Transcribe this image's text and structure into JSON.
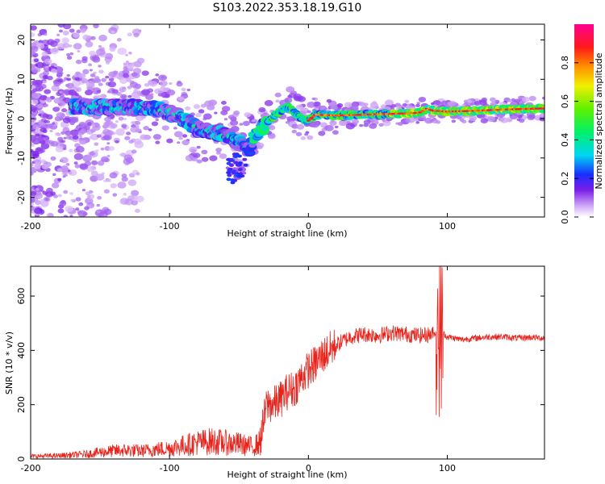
{
  "title": "S103.2022.353.18.19.G10",
  "colors": {
    "snr_line": "#e8231c",
    "frame": "#000000",
    "background": "#ffffff"
  },
  "chart_data": [
    {
      "type": "heatmap",
      "xlabel": "Height of straight line (km)",
      "ylabel": "Frequency (Hz)",
      "xlim": [
        -200,
        170
      ],
      "ylim": [
        -25,
        24
      ],
      "xticks": [
        -200,
        -100,
        0,
        100
      ],
      "yticks": [
        -20,
        -10,
        0,
        10,
        20
      ],
      "grid": false,
      "colorbar": {
        "label": "Normalized spectral amplitude",
        "range": [
          0,
          1
        ],
        "ticks": [
          0.0,
          0.2,
          0.4,
          0.6,
          0.8
        ]
      },
      "ridge": {
        "x": [
          -160,
          -140,
          -120,
          -110,
          -100,
          -90,
          -80,
          -70,
          -60,
          -50,
          -45,
          -42,
          -40,
          -35,
          -30,
          -25,
          -20,
          -15,
          -10,
          -5,
          0,
          5,
          20,
          40,
          60,
          80,
          85,
          90,
          100,
          120,
          140,
          160,
          170
        ],
        "y": [
          3,
          3,
          2.8,
          2.5,
          1.5,
          0,
          -2.5,
          -3.5,
          -4,
          -6,
          -7.5,
          -8,
          -5,
          -3,
          -1,
          0.5,
          2,
          3,
          1.5,
          0,
          -0.5,
          1,
          0.8,
          1,
          1.2,
          1.5,
          2.5,
          2,
          1.8,
          2,
          2.3,
          2.5,
          2.6
        ]
      }
    },
    {
      "type": "line",
      "xlabel": "Height of straight line (km)",
      "ylabel": "SNR (10 * v/v)",
      "xlim": [
        -200,
        170
      ],
      "ylim": [
        0,
        710
      ],
      "xticks": [
        -200,
        -100,
        0,
        100
      ],
      "yticks": [
        0,
        200,
        400,
        600
      ],
      "grid": false,
      "series": [
        {
          "x": [
            -200,
            -180,
            -160,
            -150,
            -140,
            -130,
            -120,
            -110,
            -100,
            -90,
            -80,
            -70,
            -60,
            -50,
            -40,
            -35,
            -30,
            -25,
            -20,
            -15,
            -10,
            -5,
            0,
            5,
            10,
            20,
            30,
            40,
            50,
            60,
            70,
            80,
            90,
            95,
            100,
            110,
            120,
            130,
            140,
            150,
            160,
            170
          ],
          "values": [
            10,
            12,
            18,
            25,
            30,
            32,
            30,
            35,
            40,
            50,
            60,
            65,
            60,
            55,
            45,
            60,
            200,
            200,
            220,
            250,
            260,
            300,
            330,
            350,
            380,
            420,
            450,
            460,
            455,
            465,
            460,
            455,
            460,
            470,
            450,
            440,
            445,
            450,
            450,
            445,
            448,
            445
          ]
        }
      ]
    }
  ]
}
